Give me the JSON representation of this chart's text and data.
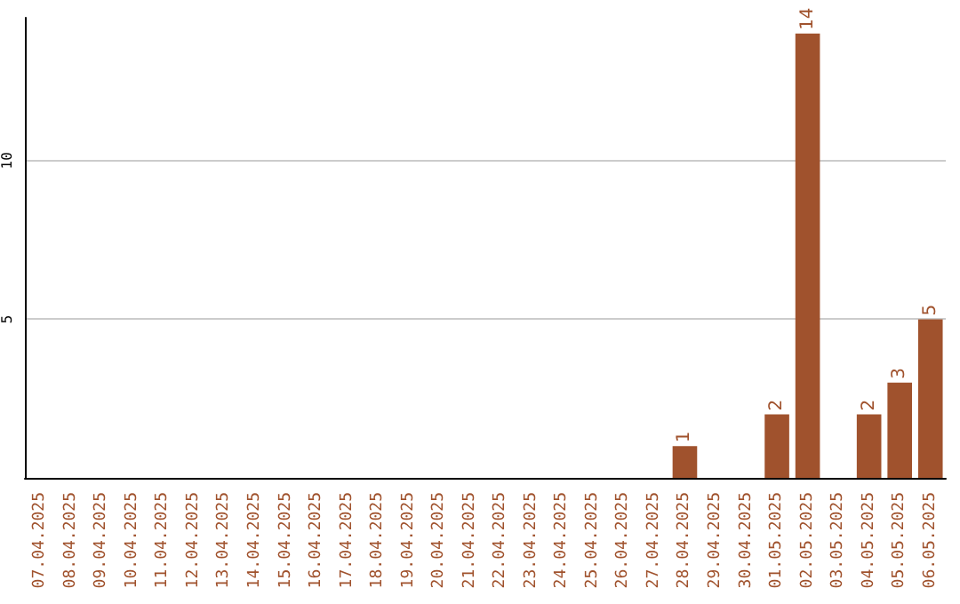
{
  "chart_data": {
    "type": "bar",
    "categories": [
      "07.04.2025",
      "08.04.2025",
      "09.04.2025",
      "10.04.2025",
      "11.04.2025",
      "12.04.2025",
      "13.04.2025",
      "14.04.2025",
      "15.04.2025",
      "16.04.2025",
      "17.04.2025",
      "18.04.2025",
      "19.04.2025",
      "20.04.2025",
      "21.04.2025",
      "22.04.2025",
      "23.04.2025",
      "24.04.2025",
      "25.04.2025",
      "26.04.2025",
      "27.04.2025",
      "28.04.2025",
      "29.04.2025",
      "30.04.2025",
      "01.05.2025",
      "02.05.2025",
      "03.05.2025",
      "04.05.2025",
      "05.05.2025",
      "06.05.2025"
    ],
    "values": [
      0,
      0,
      0,
      0,
      0,
      0,
      0,
      0,
      0,
      0,
      0,
      0,
      0,
      0,
      0,
      0,
      0,
      0,
      0,
      0,
      0,
      1,
      0,
      0,
      2,
      14,
      0,
      2,
      3,
      5
    ],
    "value_labels": [
      null,
      null,
      null,
      null,
      null,
      null,
      null,
      null,
      null,
      null,
      null,
      null,
      null,
      null,
      null,
      null,
      null,
      null,
      null,
      null,
      null,
      "1",
      null,
      null,
      "2",
      "14",
      null,
      "2",
      "3",
      "5"
    ],
    "color": "#a0522d",
    "ylim": [
      0,
      14.5
    ],
    "yticks": [
      5,
      10
    ],
    "grid": "y"
  }
}
